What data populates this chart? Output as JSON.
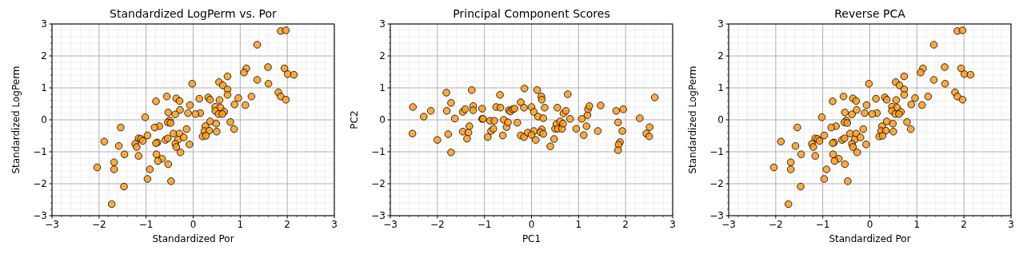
{
  "chart_data": [
    {
      "type": "scatter",
      "title": "Standardized LogPerm vs. Por",
      "xlabel": "Standardized Por",
      "ylabel": "Standardized LogPerm",
      "color": "#ff9c1a",
      "marker": "circle",
      "grid": true,
      "xlim": [
        -3,
        3
      ],
      "ylim": [
        -3,
        3
      ],
      "xticks": [
        -3,
        -2,
        -1,
        0,
        1,
        2,
        3
      ],
      "yticks": [
        -3,
        -2,
        -1,
        0,
        1,
        2,
        3
      ],
      "x": [
        1.86,
        1.97,
        1.36,
        1.13,
        1.08,
        1.59,
        1.94,
        2.01,
        2.14,
        1.36,
        1.6,
        -0.02,
        0.73,
        0.55,
        0.63,
        0.73,
        0.73,
        1.81,
        1.86,
        1.97,
        0.96,
        1.24,
        0.88,
        1.11,
        0.13,
        0.32,
        0.36,
        0.56,
        -0.07,
        0.47,
        0.58,
        0.47,
        0.54,
        0.66,
        0.62,
        0.15,
        0.05,
        -0.11,
        -0.79,
        -0.56,
        -0.36,
        -0.29,
        -0.28,
        -0.53,
        -0.38,
        -1.02,
        -0.5,
        -0.54,
        -0.48,
        0.36,
        0.26,
        0.49,
        0.79,
        0.87,
        -0.14,
        -0.72,
        -0.82,
        0.24,
        0.34,
        0.5,
        0.2,
        0.27,
        -0.97,
        -1.16,
        -1.11,
        -1.07,
        -1.23,
        -1.2,
        -0.76,
        -0.79,
        -0.59,
        -0.54,
        -0.42,
        -0.29,
        -0.32,
        -0.2,
        -0.38,
        -0.36,
        -0.27,
        -0.08,
        -1.54,
        -1.89,
        -1.58,
        -1.46,
        -1.16,
        -0.78,
        -0.66,
        -0.75,
        -0.53,
        -0.92,
        -0.97,
        -0.47,
        -1.68,
        -1.68,
        -2.04,
        -1.47,
        -1.73
      ],
      "values": [
        2.78,
        2.8,
        2.35,
        1.61,
        1.48,
        1.65,
        1.61,
        1.43,
        1.41,
        1.25,
        1.13,
        1.13,
        1.36,
        1.18,
        1.08,
        0.95,
        0.78,
        0.86,
        0.73,
        0.63,
        0.68,
        0.73,
        0.48,
        0.46,
        0.66,
        0.7,
        0.63,
        0.62,
        0.46,
        0.41,
        0.38,
        0.28,
        0.18,
        0.25,
        0.18,
        0.21,
        0.18,
        0.21,
        0.58,
        0.73,
        0.67,
        0.59,
        0.31,
        0.23,
        0.17,
        0.08,
        -0.02,
        -0.08,
        -0.1,
        -0.05,
        -0.2,
        -0.12,
        -0.07,
        -0.29,
        -0.29,
        -0.2,
        -0.24,
        -0.35,
        -0.34,
        -0.37,
        -0.52,
        -0.5,
        -0.49,
        -0.58,
        -0.6,
        -0.66,
        -0.75,
        -0.85,
        -0.71,
        -0.73,
        -0.63,
        -0.58,
        -0.43,
        -0.43,
        -0.62,
        -0.55,
        -0.75,
        -0.85,
        -1.02,
        -0.77,
        -0.24,
        -0.68,
        -0.82,
        -1.08,
        -1.13,
        -1.08,
        -1.22,
        -1.29,
        -1.39,
        -1.55,
        -1.85,
        -1.92,
        -1.33,
        -1.55,
        -1.49,
        -2.09,
        -2.64
      ]
    },
    {
      "type": "scatter",
      "title": "Principal Component Scores",
      "xlabel": "PC1",
      "ylabel": "PC2",
      "color": "#ff9c1a",
      "marker": "circle",
      "grid": true,
      "xlim": [
        -3,
        3
      ],
      "ylim": [
        -3,
        3
      ],
      "xticks": [
        -3,
        -2,
        -1,
        0,
        1,
        2,
        3
      ],
      "yticks": [
        -3,
        -2,
        -1,
        0,
        1,
        2,
        3
      ],
      "x": [
        -2.52,
        -2.53,
        -2.29,
        -2.14,
        -2.0,
        -1.81,
        -1.8,
        -1.71,
        -1.77,
        -1.71,
        -1.63,
        -1.46,
        -1.41,
        -1.46,
        -1.32,
        -1.34,
        -1.37,
        -1.27,
        -1.24,
        -1.24,
        -1.05,
        -1.05,
        -1.03,
        -0.93,
        -0.88,
        -0.86,
        -0.79,
        -0.81,
        -0.75,
        -0.67,
        -0.66,
        -0.59,
        -0.61,
        -0.53,
        -0.5,
        -0.48,
        -0.45,
        -0.4,
        -0.36,
        -0.3,
        -0.23,
        -0.16,
        -0.15,
        -0.23,
        -0.16,
        -0.08,
        0.0,
        0.05,
        0.05,
        0.0,
        0.09,
        0.12,
        0.14,
        0.21,
        0.22,
        0.28,
        0.25,
        0.22,
        0.19,
        0.25,
        0.4,
        0.48,
        0.5,
        0.53,
        0.55,
        0.56,
        0.61,
        0.65,
        0.67,
        0.68,
        0.73,
        0.77,
        0.82,
        0.95,
        1.07,
        1.11,
        1.17,
        1.19,
        1.2,
        1.23,
        1.41,
        1.47,
        1.8,
        1.84,
        1.93,
        1.95,
        1.88,
        1.85,
        1.84,
        2.3,
        2.44,
        2.51,
        2.5,
        2.62
      ],
      "values": [
        0.4,
        -0.43,
        0.1,
        0.28,
        -0.63,
        0.85,
        0.28,
        0.53,
        -0.45,
        -1.02,
        0.04,
        0.25,
        0.33,
        -0.37,
        -0.2,
        -0.4,
        -0.59,
        0.93,
        0.43,
        0.3,
        0.35,
        0.03,
        0.03,
        -0.54,
        -0.03,
        -0.35,
        -0.03,
        -0.28,
        0.4,
        0.78,
        0.38,
        0.0,
        -0.49,
        -0.23,
        -0.08,
        0.3,
        0.26,
        0.33,
        0.35,
        -0.09,
        0.55,
        0.38,
        0.98,
        -0.49,
        -0.54,
        -0.4,
        0.4,
        0.25,
        -0.35,
        -0.47,
        -0.63,
        0.93,
        0.1,
        0.73,
        0.63,
        0.38,
        0.05,
        -0.3,
        -0.39,
        -0.44,
        -0.83,
        -0.6,
        -0.28,
        -0.13,
        0.38,
        -0.28,
        -0.05,
        -0.28,
        -0.12,
        0.2,
        0.28,
        0.8,
        0.03,
        -0.28,
        0.03,
        -0.48,
        -0.2,
        0.15,
        0.33,
        0.43,
        -0.35,
        0.45,
        0.28,
        -0.08,
        -0.35,
        0.33,
        -0.7,
        -0.78,
        -0.95,
        0.05,
        -0.43,
        -0.23,
        -0.52,
        0.7
      ]
    },
    {
      "type": "scatter",
      "title": "Reverse PCA",
      "xlabel": "Standardized Por",
      "ylabel": "Standardized LogPerm",
      "color": "#ff9c1a",
      "marker": "circle",
      "grid": true,
      "xlim": [
        -3,
        3
      ],
      "ylim": [
        -3,
        3
      ],
      "xticks": [
        -3,
        -2,
        -1,
        0,
        1,
        2,
        3
      ],
      "yticks": [
        -3,
        -2,
        -1,
        0,
        1,
        2,
        3
      ],
      "x": [
        1.86,
        1.97,
        1.36,
        1.13,
        1.08,
        1.59,
        1.94,
        2.01,
        2.14,
        1.36,
        1.6,
        -0.02,
        0.73,
        0.55,
        0.63,
        0.73,
        0.73,
        1.81,
        1.86,
        1.97,
        0.96,
        1.24,
        0.88,
        1.11,
        0.13,
        0.32,
        0.36,
        0.56,
        -0.07,
        0.47,
        0.58,
        0.47,
        0.54,
        0.66,
        0.62,
        0.15,
        0.05,
        -0.11,
        -0.79,
        -0.56,
        -0.36,
        -0.29,
        -0.28,
        -0.53,
        -0.38,
        -1.02,
        -0.5,
        -0.54,
        -0.48,
        0.36,
        0.26,
        0.49,
        0.79,
        0.87,
        -0.14,
        -0.72,
        -0.82,
        0.24,
        0.34,
        0.5,
        0.2,
        0.27,
        -0.97,
        -1.16,
        -1.11,
        -1.07,
        -1.23,
        -1.2,
        -0.76,
        -0.79,
        -0.59,
        -0.54,
        -0.42,
        -0.29,
        -0.32,
        -0.2,
        -0.38,
        -0.36,
        -0.27,
        -0.08,
        -1.54,
        -1.89,
        -1.58,
        -1.46,
        -1.16,
        -0.78,
        -0.66,
        -0.75,
        -0.53,
        -0.92,
        -0.97,
        -0.47,
        -1.68,
        -1.68,
        -2.04,
        -1.47,
        -1.73
      ],
      "values": [
        2.78,
        2.8,
        2.35,
        1.61,
        1.48,
        1.65,
        1.61,
        1.43,
        1.41,
        1.25,
        1.13,
        1.13,
        1.36,
        1.18,
        1.08,
        0.95,
        0.78,
        0.86,
        0.73,
        0.63,
        0.68,
        0.73,
        0.48,
        0.46,
        0.66,
        0.7,
        0.63,
        0.62,
        0.46,
        0.41,
        0.38,
        0.28,
        0.18,
        0.25,
        0.18,
        0.21,
        0.18,
        0.21,
        0.58,
        0.73,
        0.67,
        0.59,
        0.31,
        0.23,
        0.17,
        0.08,
        -0.02,
        -0.08,
        -0.1,
        -0.05,
        -0.2,
        -0.12,
        -0.07,
        -0.29,
        -0.29,
        -0.2,
        -0.24,
        -0.35,
        -0.34,
        -0.37,
        -0.52,
        -0.5,
        -0.49,
        -0.58,
        -0.6,
        -0.66,
        -0.75,
        -0.85,
        -0.71,
        -0.73,
        -0.63,
        -0.58,
        -0.43,
        -0.43,
        -0.62,
        -0.55,
        -0.75,
        -0.85,
        -1.02,
        -0.77,
        -0.24,
        -0.68,
        -0.82,
        -1.08,
        -1.13,
        -1.08,
        -1.22,
        -1.29,
        -1.39,
        -1.55,
        -1.85,
        -1.92,
        -1.33,
        -1.55,
        -1.49,
        -2.09,
        -2.64
      ]
    }
  ]
}
